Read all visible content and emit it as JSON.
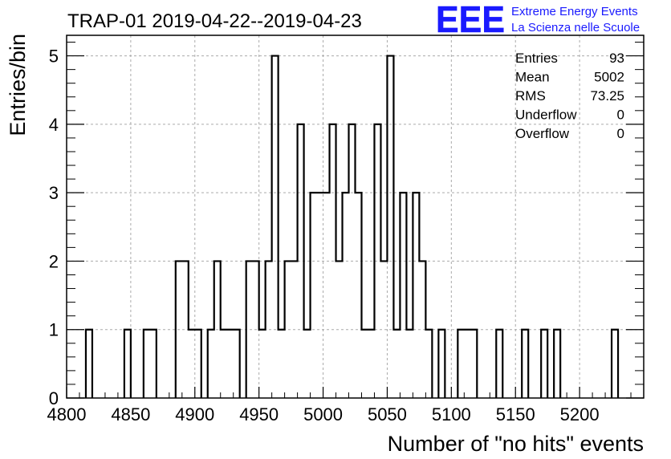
{
  "header": {
    "title": "TRAP-01 2019-04-22--2019-04-23",
    "logo_text": "EEE",
    "logo_line1": "Extreme Energy Events",
    "logo_line2": "La Scienza nelle Scuole"
  },
  "stats": [
    {
      "label": "Entries",
      "value": "93"
    },
    {
      "label": "Mean",
      "value": "5002"
    },
    {
      "label": "RMS",
      "value": "73.25"
    },
    {
      "label": "Underflow",
      "value": "0"
    },
    {
      "label": "Overflow",
      "value": "0"
    }
  ],
  "colors": {
    "logo": "#1a1aff",
    "grid": "#aaaaaa",
    "line": "#000000"
  },
  "chart_data": {
    "type": "histogram",
    "xlabel": "Number of \"no hits\" events",
    "ylabel": "Entries/bin",
    "xlim": [
      4800,
      5250
    ],
    "ylim": [
      0,
      5.3
    ],
    "grid": true,
    "x_ticks": [
      4800,
      4850,
      4900,
      4950,
      5000,
      5050,
      5100,
      5150,
      5200
    ],
    "x_tick_labels": [
      "4800",
      "4850",
      "4900",
      "4950",
      "5000",
      "5050",
      "5100",
      "5150",
      "5200"
    ],
    "y_ticks": [
      0,
      1,
      2,
      3,
      4,
      5
    ],
    "y_tick_labels": [
      "0",
      "1",
      "2",
      "3",
      "4",
      "5"
    ],
    "bin_width": 5,
    "bins": [
      [
        4815,
        4820,
        1
      ],
      [
        4845,
        4850,
        1
      ],
      [
        4860,
        4870,
        1
      ],
      [
        4885,
        4895,
        2
      ],
      [
        4895,
        4900,
        1
      ],
      [
        4900,
        4905,
        1
      ],
      [
        4910,
        4915,
        1
      ],
      [
        4915,
        4920,
        2
      ],
      [
        4920,
        4935,
        1
      ],
      [
        4940,
        4950,
        2
      ],
      [
        4950,
        4955,
        1
      ],
      [
        4955,
        4960,
        2
      ],
      [
        4960,
        4965,
        5
      ],
      [
        4965,
        4970,
        1
      ],
      [
        4970,
        4980,
        2
      ],
      [
        4980,
        4985,
        4
      ],
      [
        4985,
        4990,
        1
      ],
      [
        4990,
        5005,
        3
      ],
      [
        5005,
        5010,
        4
      ],
      [
        5010,
        5015,
        2
      ],
      [
        5015,
        5020,
        3
      ],
      [
        5020,
        5025,
        4
      ],
      [
        5025,
        5030,
        3
      ],
      [
        5030,
        5040,
        1
      ],
      [
        5040,
        5045,
        4
      ],
      [
        5045,
        5050,
        2
      ],
      [
        5050,
        5055,
        5
      ],
      [
        5055,
        5060,
        1
      ],
      [
        5060,
        5065,
        3
      ],
      [
        5065,
        5070,
        1
      ],
      [
        5070,
        5075,
        3
      ],
      [
        5075,
        5080,
        2
      ],
      [
        5080,
        5085,
        1
      ],
      [
        5090,
        5095,
        1
      ],
      [
        5105,
        5120,
        1
      ],
      [
        5135,
        5140,
        1
      ],
      [
        5155,
        5160,
        1
      ],
      [
        5170,
        5175,
        1
      ],
      [
        5180,
        5185,
        1
      ],
      [
        5225,
        5230,
        1
      ]
    ]
  }
}
